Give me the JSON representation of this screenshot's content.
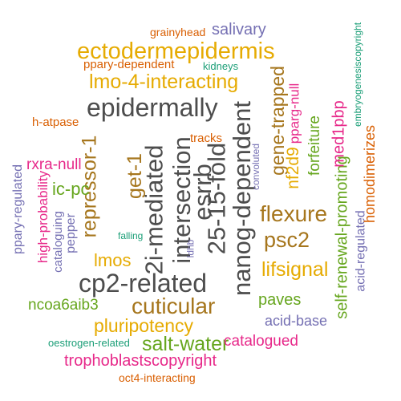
{
  "colors": {
    "dark_gray": "#4d4d4d",
    "brown": "#a6761d",
    "gold": "#e6ab02",
    "green": "#66a61e",
    "magenta": "#e7298a",
    "purple": "#7570b3",
    "orange": "#d95f02",
    "teal": "#1b9e77"
  },
  "words": [
    {
      "text": "2i-mediated",
      "color": "dark_gray",
      "orientation": "vertical"
    },
    {
      "text": "25-15-fold",
      "color": "dark_gray",
      "orientation": "vertical"
    },
    {
      "text": "intersection",
      "color": "dark_gray",
      "orientation": "vertical"
    },
    {
      "text": "nanog-dependent",
      "color": "dark_gray",
      "orientation": "vertical"
    },
    {
      "text": "esrrb",
      "color": "dark_gray",
      "orientation": "vertical"
    },
    {
      "text": "epidermally",
      "color": "dark_gray",
      "orientation": "horizontal"
    },
    {
      "text": "cp2-related",
      "color": "dark_gray",
      "orientation": "horizontal"
    },
    {
      "text": "flexure",
      "color": "brown",
      "orientation": "horizontal"
    },
    {
      "text": "cuticular",
      "color": "brown",
      "orientation": "horizontal"
    },
    {
      "text": "repressor-1",
      "color": "brown",
      "orientation": "vertical"
    },
    {
      "text": "get-1",
      "color": "brown",
      "orientation": "vertical"
    },
    {
      "text": "gene-trapped",
      "color": "brown",
      "orientation": "vertical"
    },
    {
      "text": "psc2",
      "color": "brown",
      "orientation": "horizontal"
    },
    {
      "text": "ectodermepidermis",
      "color": "gold",
      "orientation": "horizontal"
    },
    {
      "text": "lmo-4-interacting",
      "color": "gold",
      "orientation": "horizontal"
    },
    {
      "text": "lifsignal",
      "color": "gold",
      "orientation": "horizontal"
    },
    {
      "text": "pluripotency",
      "color": "gold",
      "orientation": "horizontal"
    },
    {
      "text": "lmos",
      "color": "gold",
      "orientation": "horizontal"
    },
    {
      "text": "nf2d9",
      "color": "gold",
      "orientation": "vertical"
    },
    {
      "text": "forfeiture",
      "color": "green",
      "orientation": "vertical"
    },
    {
      "text": "self-renewal-promoting",
      "color": "green",
      "orientation": "vertical"
    },
    {
      "text": "salt-water",
      "color": "green",
      "orientation": "horizontal"
    },
    {
      "text": "ic-pc",
      "color": "green",
      "orientation": "horizontal"
    },
    {
      "text": "ncoa6aib3",
      "color": "green",
      "orientation": "horizontal"
    },
    {
      "text": "paves",
      "color": "green",
      "orientation": "horizontal"
    },
    {
      "text": "trophoblastscopyright",
      "color": "magenta",
      "orientation": "horizontal"
    },
    {
      "text": "rxra-null",
      "color": "magenta",
      "orientation": "horizontal"
    },
    {
      "text": "high-probability",
      "color": "magenta",
      "orientation": "vertical"
    },
    {
      "text": "catalogued",
      "color": "magenta",
      "orientation": "horizontal"
    },
    {
      "text": "pparg-null",
      "color": "magenta",
      "orientation": "vertical"
    },
    {
      "text": "med1pbp",
      "color": "magenta",
      "orientation": "vertical"
    },
    {
      "text": "salivary",
      "color": "purple",
      "orientation": "horizontal"
    },
    {
      "text": "acid-base",
      "color": "purple",
      "orientation": "horizontal"
    },
    {
      "text": "ppary-regulated",
      "color": "purple",
      "orientation": "vertical"
    },
    {
      "text": "pepper",
      "color": "purple",
      "orientation": "vertical"
    },
    {
      "text": "cataloguing",
      "color": "purple",
      "orientation": "vertical"
    },
    {
      "text": "acid-regulated",
      "color": "purple",
      "orientation": "vertical"
    },
    {
      "text": "convoluted",
      "color": "purple",
      "orientation": "vertical"
    },
    {
      "text": "ldhb",
      "color": "purple",
      "orientation": "vertical"
    },
    {
      "text": "grainyhead",
      "color": "orange",
      "orientation": "horizontal"
    },
    {
      "text": "ppary-dependent",
      "color": "orange",
      "orientation": "horizontal"
    },
    {
      "text": "h-atpase",
      "color": "orange",
      "orientation": "horizontal"
    },
    {
      "text": "tracks",
      "color": "orange",
      "orientation": "horizontal"
    },
    {
      "text": "homodimerizes",
      "color": "orange",
      "orientation": "vertical"
    },
    {
      "text": "oct4-interacting",
      "color": "orange",
      "orientation": "horizontal"
    },
    {
      "text": "kidneys",
      "color": "teal",
      "orientation": "horizontal"
    },
    {
      "text": "falling",
      "color": "teal",
      "orientation": "horizontal"
    },
    {
      "text": "oestrogen-related",
      "color": "teal",
      "orientation": "horizontal"
    },
    {
      "text": "embryogenesiscopyright",
      "color": "teal",
      "orientation": "vertical"
    }
  ]
}
